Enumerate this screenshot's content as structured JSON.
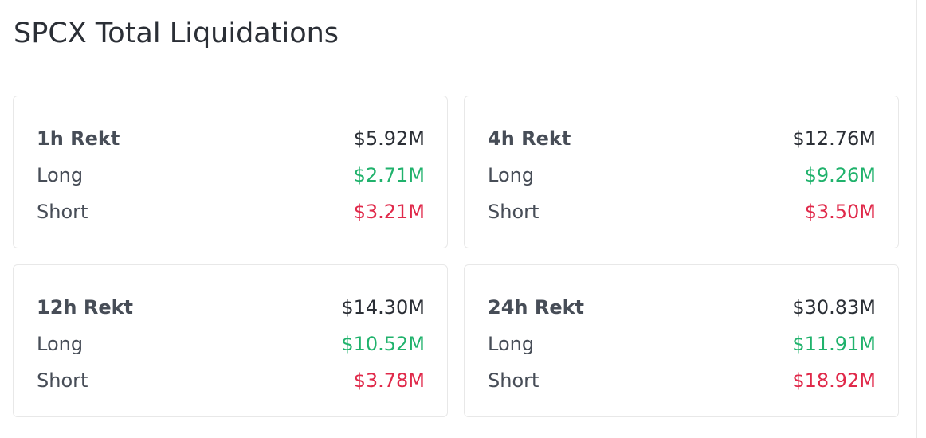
{
  "header": {
    "title": "SPCX Total Liquidations"
  },
  "cards": [
    {
      "label": "1h Rekt",
      "total": "$5.92M",
      "long_label": "Long",
      "long": "$2.71M",
      "short_label": "Short",
      "short": "$3.21M"
    },
    {
      "label": "4h Rekt",
      "total": "$12.76M",
      "long_label": "Long",
      "long": "$9.26M",
      "short_label": "Short",
      "short": "$3.50M"
    },
    {
      "label": "12h Rekt",
      "total": "$14.30M",
      "long_label": "Long",
      "long": "$10.52M",
      "short_label": "Short",
      "short": "$3.78M"
    },
    {
      "label": "24h Rekt",
      "total": "$30.83M",
      "long_label": "Long",
      "long": "$11.91M",
      "short_label": "Short",
      "short": "$18.92M"
    }
  ]
}
